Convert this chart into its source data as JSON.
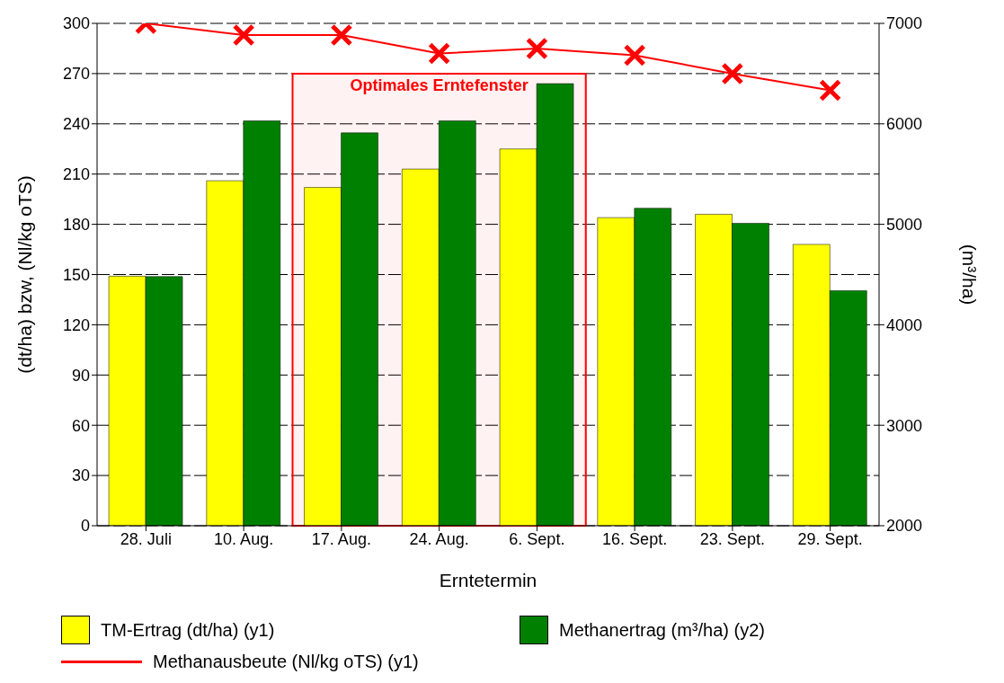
{
  "chart_data": {
    "type": "bar",
    "xlabel": "Erntetermin",
    "ylabel": "(dt/ha) bzw, (Nl/kg oTS)",
    "y2label": "(m³/ha)",
    "categories": [
      "28. Juli",
      "10. Aug.",
      "17. Aug.",
      "24. Aug.",
      "6. Sept.",
      "16. Sept.",
      "23. Sept.",
      "29. Sept."
    ],
    "series": [
      {
        "name": "TM-Ertrag (dt/ha) (y1)",
        "color": "#ffff00",
        "values": [
          149,
          206,
          202,
          213,
          225,
          184,
          186,
          168
        ]
      },
      {
        "name": "Methanertrag (m³/ha) (y2)",
        "axis": "y2",
        "color": "#008000",
        "values": [
          4480,
          6030,
          5910,
          6030,
          6400,
          5160,
          5010,
          4340
        ]
      },
      {
        "name": "Methanausbeute (Nl/kg oTS) (y1)",
        "type": "line",
        "color": "#ff0000",
        "marker": "cross",
        "values": [
          300,
          293,
          293,
          282,
          285,
          281,
          270,
          260
        ]
      }
    ],
    "ylim": [
      0,
      300
    ],
    "yticks": [
      0,
      30,
      60,
      90,
      120,
      150,
      180,
      210,
      240,
      270,
      300
    ],
    "y2lim": [
      2000,
      7000
    ],
    "y2ticks": [
      2000,
      3000,
      4000,
      5000,
      6000,
      7000
    ],
    "bands": [
      {
        "axis": "x",
        "from": "17. Aug.",
        "to": "6. Sept.",
        "label": "Optimales Erntefenster",
        "color": "#ff0000"
      }
    ],
    "grid": "y",
    "legend": "bottom"
  }
}
